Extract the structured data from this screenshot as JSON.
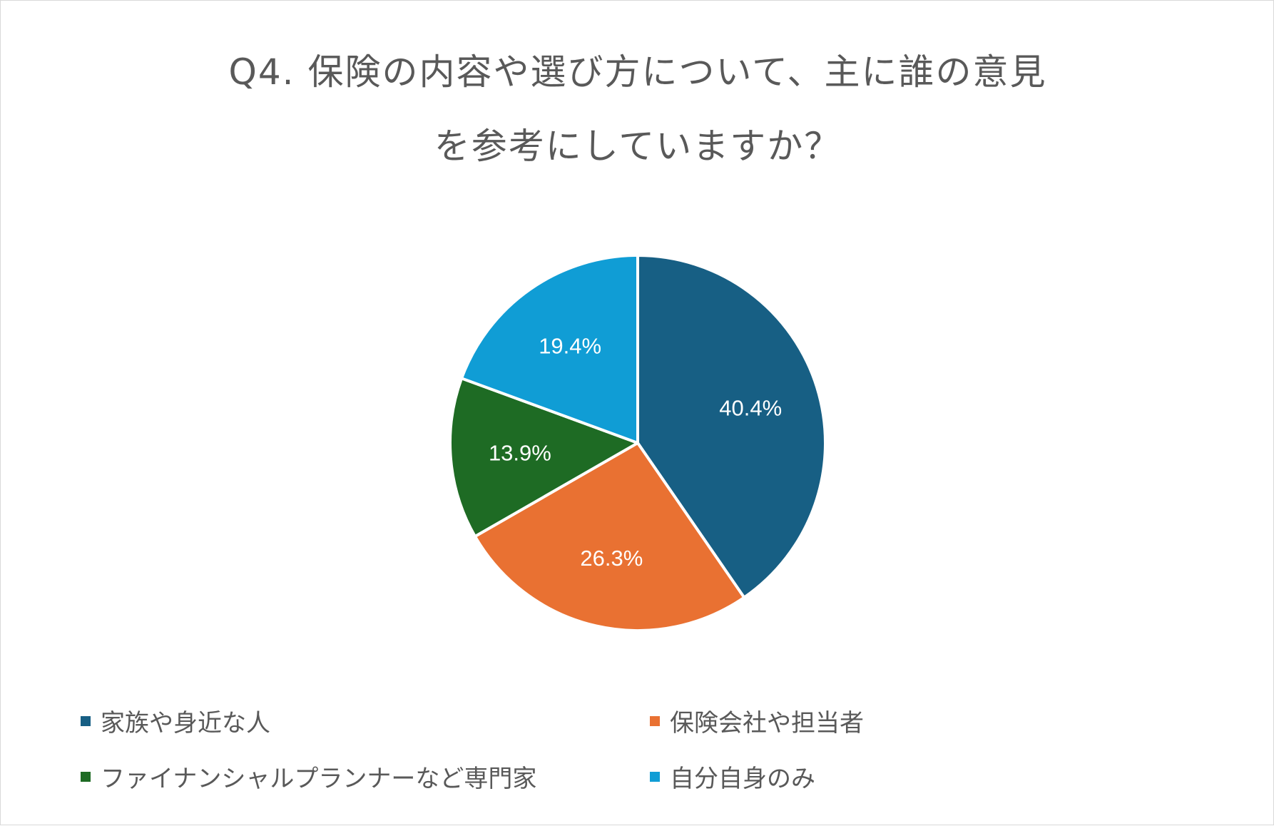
{
  "chart_data": {
    "type": "pie",
    "title_lines": [
      "Q4. 保険の内容や選び方について、主に誰の意見",
      "を参考にしていますか？"
    ],
    "categories": [
      "家族や身近な人",
      "保険会社や担当者",
      "ファイナンシャルプランナーなど専門家",
      "自分自身のみ"
    ],
    "values": [
      40.4,
      26.3,
      13.9,
      19.4
    ],
    "labels": [
      "40.4%",
      "26.3%",
      "13.9%",
      "19.4%"
    ],
    "colors": [
      "#175f84",
      "#e97132",
      "#1e6b24",
      "#109dd5"
    ],
    "start_angle": "top, clockwise",
    "legend_position": "bottom"
  }
}
